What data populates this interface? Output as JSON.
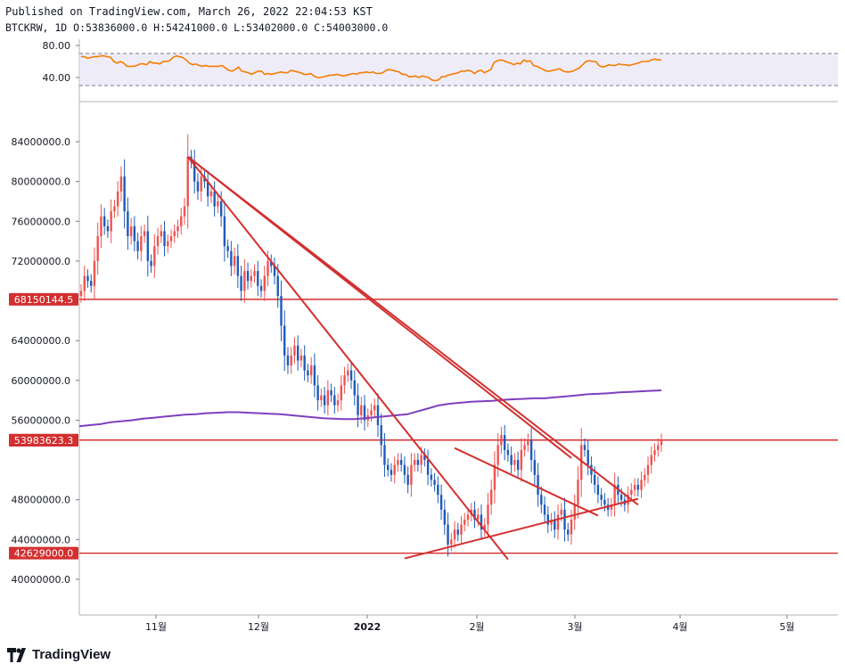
{
  "header": {
    "published": "Published on TradingView.com, March 26, 2022 22:04:53 KST",
    "symbol_line": "BTCKRW, 1D O:53836000.0 H:54241000.0 L:53402000.0 C:54003000.0"
  },
  "brand": {
    "name": "TradingView",
    "logo_icon": "tradingview-logo-icon"
  },
  "chart_data": [
    {
      "type": "line",
      "panel": "oscillator",
      "y_ticks": [
        "80.00",
        "40.00"
      ],
      "y_tick_values": [
        80,
        40
      ],
      "bands": [
        70,
        30
      ],
      "color": "#f57c00",
      "band_color": "#e1dcf5",
      "values": [
        66,
        66,
        64,
        65,
        66,
        66,
        67,
        67,
        66,
        65,
        60,
        58,
        60,
        58,
        54,
        54,
        54,
        55,
        57,
        57,
        56,
        60,
        58,
        58,
        57,
        60,
        60,
        61,
        65,
        67,
        66,
        65,
        62,
        58,
        56,
        57,
        55,
        54,
        55,
        54,
        54,
        54,
        54,
        55,
        52,
        49,
        48,
        50,
        53,
        48,
        47,
        46,
        44,
        46,
        48,
        48,
        44,
        45,
        44,
        45,
        46,
        47,
        46,
        46,
        49,
        48,
        47,
        46,
        44,
        44,
        45,
        42,
        40,
        40,
        41,
        42,
        43,
        43,
        44,
        43,
        42,
        43,
        44,
        45,
        44,
        46,
        46,
        47,
        46,
        47,
        45,
        45,
        46,
        49,
        50,
        49,
        48,
        47,
        44,
        44,
        41,
        41,
        42,
        40,
        42,
        41,
        40,
        37,
        36,
        37,
        41,
        41,
        43,
        44,
        45,
        46,
        48,
        48,
        49,
        48,
        45,
        48,
        49,
        46,
        48,
        50,
        59,
        61,
        62,
        61,
        59,
        58,
        56,
        58,
        57,
        62,
        60,
        61,
        55,
        54,
        52,
        50,
        48,
        48,
        49,
        50,
        51,
        48,
        47,
        47,
        48,
        50,
        52,
        56,
        60,
        61,
        60,
        60,
        55,
        53,
        54,
        56,
        55,
        55,
        57,
        56,
        56,
        55,
        56,
        57,
        58,
        60,
        60,
        60,
        62,
        63,
        62,
        62
      ]
    },
    {
      "type": "candlestick",
      "panel": "price",
      "y_ticks": [
        "84000000.0",
        "80000000.0",
        "76000000.0",
        "72000000.0",
        "64000000.0",
        "60000000.0",
        "56000000.0",
        "48000000.0",
        "44000000.0",
        "40000000.0"
      ],
      "y_tick_values": [
        84000000,
        80000000,
        76000000,
        72000000,
        64000000,
        60000000,
        56000000,
        48000000,
        44000000,
        40000000
      ],
      "x_ticks": [
        "11월",
        "12월",
        "2022",
        "2월",
        "3월",
        "4월",
        "5월"
      ],
      "colors": {
        "up": "#ef5350",
        "down": "#1e5bb8",
        "ma": "#7d3fbf",
        "trendline": "#d32f2f"
      },
      "price_tags": [
        {
          "label": "68150144.5",
          "value": 68150144.5,
          "role": "horizontal-level"
        },
        {
          "label": "54003000.0",
          "value": 54003000.0,
          "role": "last-price"
        },
        {
          "label": "53983623.3",
          "value": 53983623.3,
          "role": "ma-value"
        },
        {
          "label": "42629000.0",
          "value": 42629000.0,
          "role": "horizontal-level"
        }
      ],
      "closes": [
        69000000,
        70500000,
        70000000,
        69500000,
        72000000,
        74500000,
        76500000,
        75500000,
        75000000,
        77000000,
        77500000,
        79000000,
        80500000,
        77000000,
        74500000,
        75500000,
        74000000,
        73000000,
        74500000,
        75000000,
        72000000,
        71500000,
        73500000,
        74500000,
        75000000,
        73500000,
        74000000,
        74500000,
        75000000,
        75500000,
        76500000,
        77500000,
        82500000,
        82000000,
        80000000,
        79000000,
        80500000,
        80000000,
        78500000,
        79000000,
        77500000,
        78000000,
        76500000,
        73500000,
        73000000,
        71500000,
        72500000,
        70500000,
        69000000,
        71000000,
        70000000,
        70500000,
        71000000,
        69500000,
        69000000,
        70500000,
        72000000,
        71500000,
        70500000,
        68500000,
        65500000,
        62500000,
        61500000,
        62500000,
        63500000,
        62000000,
        62500000,
        61000000,
        60500000,
        61500000,
        59500000,
        58000000,
        58500000,
        57500000,
        59000000,
        58500000,
        57500000,
        58000000,
        59500000,
        60500000,
        61000000,
        60000000,
        58500000,
        56500000,
        57500000,
        56000000,
        56500000,
        57000000,
        57500000,
        55500000,
        53500000,
        51500000,
        51000000,
        50500000,
        51500000,
        52000000,
        51500000,
        50500000,
        49500000,
        51500000,
        52000000,
        51500000,
        52500000,
        52000000,
        50500000,
        50000000,
        49500000,
        48500000,
        47000000,
        45500000,
        43500000,
        44000000,
        45000000,
        44500000,
        45500000,
        46000000,
        46500000,
        47000000,
        46000000,
        46500000,
        45000000,
        45500000,
        47500000,
        49000000,
        51500000,
        53500000,
        54500000,
        53000000,
        52500000,
        51500000,
        52000000,
        51000000,
        53000000,
        53500000,
        54000000,
        52000000,
        50500000,
        48500000,
        47500000,
        46500000,
        45500000,
        46000000,
        45000000,
        46500000,
        47000000,
        45000000,
        44500000,
        46000000,
        47500000,
        50000000,
        53500000,
        53000000,
        51500000,
        50500000,
        49500000,
        48500000,
        48000000,
        47500000,
        47000000,
        47500000,
        49500000,
        48500000,
        48000000,
        47500000,
        48500000,
        49000000,
        49500000,
        49000000,
        50000000,
        50500000,
        51500000,
        52500000,
        53000000,
        53500000,
        54003000
      ],
      "ma": [
        55400000,
        55500000,
        55600000,
        55800000,
        55900000,
        56000000,
        56150000,
        56250000,
        56350000,
        56450000,
        56550000,
        56600000,
        56700000,
        56750000,
        56800000,
        56800000,
        56750000,
        56700000,
        56650000,
        56600000,
        56500000,
        56400000,
        56300000,
        56200000,
        56150000,
        56100000,
        56100000,
        56200000,
        56300000,
        56400000,
        56500000,
        56600000,
        56900000,
        57200000,
        57500000,
        57650000,
        57750000,
        57850000,
        57900000,
        57950000,
        58050000,
        58100000,
        58150000,
        58200000,
        58200000,
        58300000,
        58400000,
        58500000,
        58600000,
        58650000,
        58700000,
        58800000,
        58850000,
        58900000,
        58950000,
        59000000
      ]
    }
  ]
}
